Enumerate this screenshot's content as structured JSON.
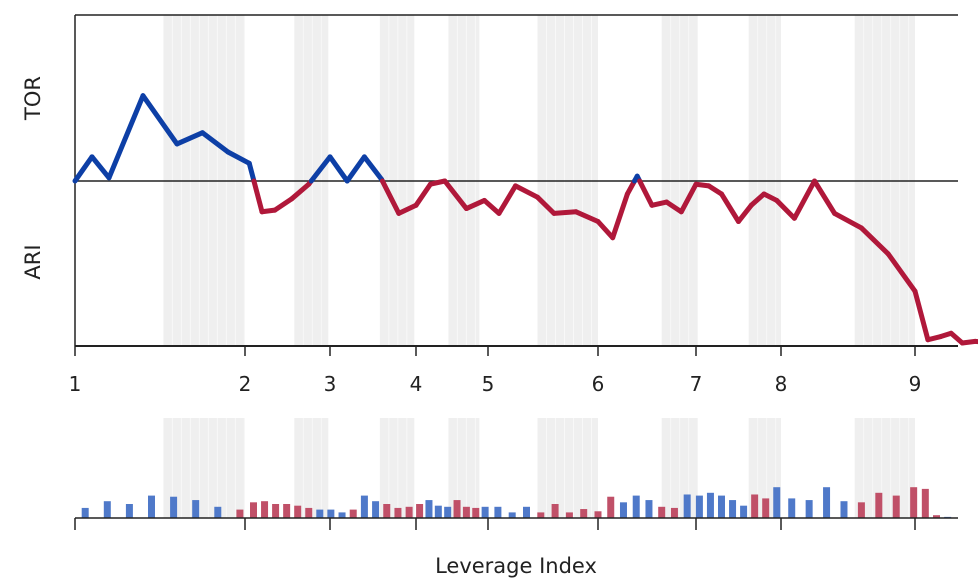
{
  "chart_data": {
    "type": "line",
    "x_ticks": [
      "1",
      "2",
      "3",
      "4",
      "5",
      "6",
      "7",
      "8",
      "9"
    ],
    "x_label": "Leverage Index",
    "y_label_top": "TOR",
    "y_label_bottom": "ARI",
    "colors": {
      "positive": "#0d3fa6",
      "negative": "#b0183a",
      "bar_positive": "#4f79c9",
      "bar_negative": "#c05068",
      "shade": "#efefef"
    },
    "main_series": {
      "ylim": [
        -100,
        100
      ],
      "x": [
        1.0,
        1.1,
        1.2,
        1.4,
        1.6,
        1.75,
        1.9,
        2.05,
        2.2,
        2.35,
        2.55,
        2.75,
        3.0,
        3.2,
        3.4,
        3.6,
        3.8,
        4.0,
        4.2,
        4.4,
        4.7,
        4.95,
        5.1,
        5.25,
        5.45,
        5.6,
        5.8,
        6.0,
        6.15,
        6.3,
        6.4,
        6.55,
        6.7,
        6.85,
        7.0,
        7.15,
        7.3,
        7.5,
        7.65,
        7.8,
        7.95,
        8.1,
        8.25,
        8.4,
        8.6,
        8.8,
        9.0,
        9.15,
        9.3,
        9.42,
        9.55,
        9.7,
        9.9
      ],
      "y": [
        0,
        15,
        2,
        53,
        23,
        30,
        18,
        11,
        -19,
        -18,
        -11,
        -2,
        15,
        0,
        15,
        1,
        -20,
        -15,
        -2,
        0,
        -17,
        -12,
        -20,
        -3,
        -10,
        -20,
        -19,
        -25,
        -35,
        -8,
        3,
        -15,
        -13,
        -19,
        -2,
        -3,
        -8,
        -25,
        -15,
        -8,
        -12,
        -23,
        0,
        -20,
        -29,
        -45,
        -68,
        -98,
        -96,
        -94,
        -100,
        -99,
        -100
      ]
    },
    "bar_series": {
      "ylim": [
        0,
        100
      ],
      "x": [
        1.06,
        1.19,
        1.32,
        1.45,
        1.58,
        1.71,
        1.84,
        1.97,
        2.1,
        2.23,
        2.36,
        2.49,
        2.62,
        2.75,
        2.88,
        3.01,
        3.14,
        3.27,
        3.4,
        3.53,
        3.66,
        3.79,
        3.92,
        4.05,
        4.18,
        4.31,
        4.44,
        4.57,
        4.7,
        4.83,
        4.96,
        5.09,
        5.22,
        5.35,
        5.48,
        5.61,
        5.74,
        5.87,
        6.0,
        6.13,
        6.26,
        6.39,
        6.52,
        6.65,
        6.78,
        6.91,
        7.04,
        7.17,
        7.3,
        7.43,
        7.56,
        7.69,
        7.82,
        7.95,
        8.08,
        8.21,
        8.34,
        8.47,
        8.6,
        8.73,
        8.86,
        8.99,
        9.12,
        9.25,
        9.38
      ],
      "values": [
        18,
        30,
        25,
        40,
        38,
        32,
        20,
        15,
        28,
        30,
        25,
        25,
        22,
        18,
        15,
        15,
        10,
        15,
        40,
        30,
        25,
        18,
        20,
        25,
        32,
        22,
        20,
        32,
        20,
        18,
        20,
        20,
        10,
        20,
        10,
        25,
        10,
        16,
        12,
        38,
        28,
        40,
        32,
        20,
        18,
        42,
        40,
        45,
        40,
        32,
        22,
        42,
        35,
        55,
        35,
        32,
        55,
        30,
        28,
        45,
        40,
        55,
        52,
        5,
        2
      ],
      "sign": [
        "+",
        "+",
        "+",
        "+",
        "+",
        "+",
        "+",
        "-",
        "-",
        "-",
        "-",
        "-",
        "-",
        "-",
        "+",
        "+",
        "+",
        "-",
        "+",
        "+",
        "-",
        "-",
        "-",
        "-",
        "+",
        "+",
        "+",
        "-",
        "-",
        "-",
        "+",
        "+",
        "+",
        "+",
        "-",
        "-",
        "-",
        "-",
        "-",
        "-",
        "+",
        "+",
        "+",
        "-",
        "-",
        "+",
        "+",
        "+",
        "+",
        "+",
        "+",
        "-",
        "-",
        "+",
        "+",
        "+",
        "+",
        "+",
        "-",
        "-",
        "-",
        "-",
        "-",
        "-",
        "+"
      ]
    },
    "shaded_regions": [
      [
        1.52,
        2.0
      ],
      [
        2.58,
        2.98
      ],
      [
        3.58,
        3.98
      ],
      [
        4.45,
        4.88
      ],
      [
        5.45,
        6.0
      ],
      [
        6.65,
        7.02
      ],
      [
        7.62,
        8.0
      ],
      [
        8.55,
        9.0
      ]
    ]
  }
}
